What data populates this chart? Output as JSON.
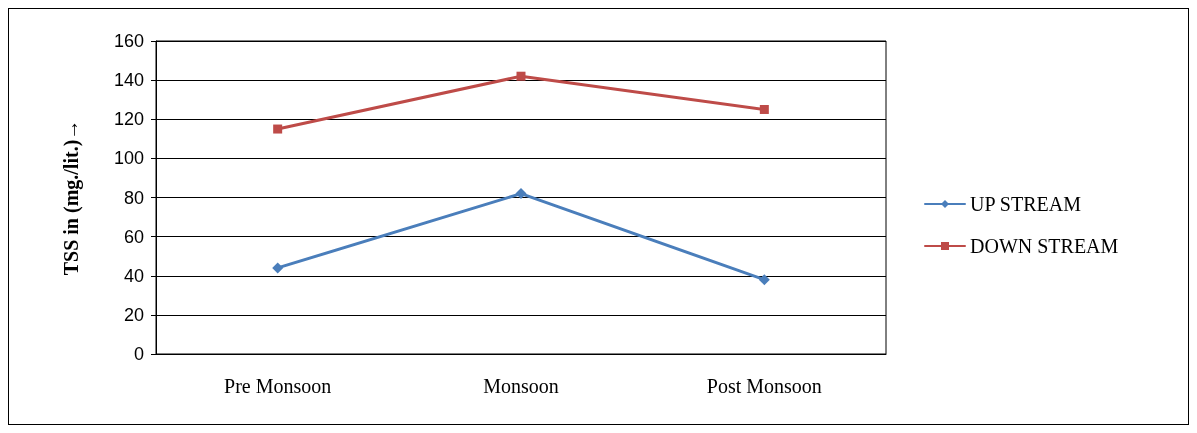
{
  "chart_data": {
    "type": "line",
    "ylabel": "TSS in (mg./lit.)→",
    "categories": [
      "Pre Monsoon",
      "Monsoon",
      "Post Monsoon"
    ],
    "series": [
      {
        "name": "UP STREAM",
        "color": "#4a7ebb",
        "values": [
          44,
          82,
          38
        ],
        "marker": "diamond"
      },
      {
        "name": "DOWN STREAM",
        "color": "#be4b48",
        "values": [
          115,
          142,
          125
        ],
        "marker": "square"
      }
    ],
    "ylim": [
      0,
      160
    ],
    "yticks": [
      0,
      20,
      40,
      60,
      80,
      100,
      120,
      140,
      160
    ],
    "grid": "y",
    "legend": "right",
    "line_style": "solid"
  }
}
